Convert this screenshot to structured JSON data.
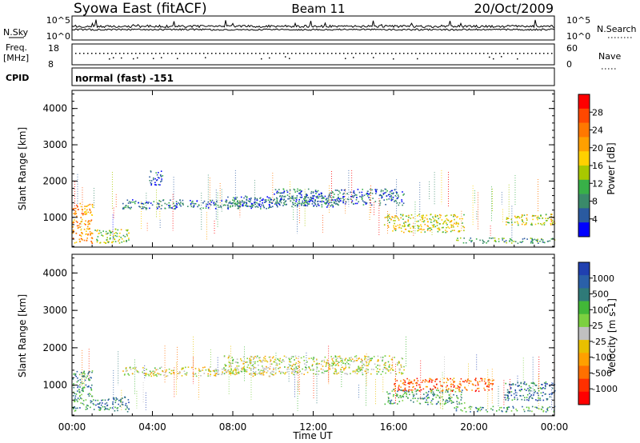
{
  "header": {
    "station": "Syowa East (fitACF)",
    "beam": "Beam 11",
    "date": "20/Oct/2009"
  },
  "top_panels": {
    "nsky_label": "N.Sky",
    "nsearch_label": "N.Search",
    "noise_ticks": [
      "10^5",
      "10^0"
    ],
    "freq_label": "Freq.",
    "freq_unit": "[MHz]",
    "freq_ticks": [
      "18",
      "8"
    ],
    "nave_label": "Nave",
    "nave_ticks": [
      "60",
      "0"
    ],
    "cpid_label": "CPID",
    "cpid_value": "normal (fast) -151"
  },
  "colorbars": {
    "power": {
      "label": "Power [dB]",
      "ticks": [
        "28",
        "24",
        "20",
        "16",
        "12",
        "8",
        "4"
      ],
      "colors": [
        "#ff0000",
        "#ff4800",
        "#ff7800",
        "#ffa000",
        "#ffd000",
        "#a8c800",
        "#38b048",
        "#3a8a6a",
        "#2a5aa0",
        "#0000ff"
      ]
    },
    "velocity": {
      "label": "Velocity [m s-1]",
      "ticks": [
        "1000",
        "500",
        "100",
        "25",
        "-25",
        "-100",
        "-500",
        "-1000"
      ],
      "colors": [
        "#2040b0",
        "#2a60a8",
        "#2f7a78",
        "#42b838",
        "#7cd040",
        "#c0c0c0",
        "#e8c000",
        "#ffa000",
        "#ff7000",
        "#ff3000",
        "#ff0000"
      ]
    }
  },
  "chart_data": [
    {
      "type": "heatmap",
      "name": "Power",
      "xlabel": "",
      "ylabel": "Slant Range [km]",
      "x_ticks": [
        "00:00",
        "04:00",
        "08:00",
        "12:00",
        "16:00",
        "20:00",
        "00:00"
      ],
      "y_ticks": [
        "1000",
        "2000",
        "3000",
        "4000"
      ],
      "xlim_hours": [
        0,
        24
      ],
      "ylim_km": [
        180,
        4500
      ],
      "zlim_db": [
        0,
        30
      ],
      "echo_regions": [
        {
          "t0": 0.0,
          "t1": 1.0,
          "r0": 300,
          "r1": 1400,
          "level": 0.7
        },
        {
          "t0": 1.0,
          "t1": 2.8,
          "r0": 300,
          "r1": 700,
          "level": 0.45
        },
        {
          "t0": 2.5,
          "t1": 10.0,
          "r0": 1250,
          "r1": 1500,
          "level": 0.2
        },
        {
          "t0": 3.8,
          "t1": 4.5,
          "r0": 1900,
          "r1": 2300,
          "level": 0.15
        },
        {
          "t0": 7.5,
          "t1": 13.5,
          "r0": 1300,
          "r1": 1600,
          "level": 0.2
        },
        {
          "t0": 10.0,
          "t1": 16.5,
          "r0": 1350,
          "r1": 1800,
          "level": 0.2
        },
        {
          "t0": 15.5,
          "t1": 19.5,
          "r0": 600,
          "r1": 1100,
          "level": 0.5
        },
        {
          "t0": 19.0,
          "t1": 24.0,
          "r0": 300,
          "r1": 450,
          "level": 0.3
        },
        {
          "t0": 21.5,
          "t1": 24.0,
          "r0": 800,
          "r1": 1100,
          "level": 0.5
        }
      ]
    },
    {
      "type": "heatmap",
      "name": "Velocity",
      "xlabel": "Time UT",
      "ylabel": "Slant Range [km]",
      "x_ticks": [
        "00:00",
        "04:00",
        "08:00",
        "12:00",
        "16:00",
        "20:00",
        "00:00"
      ],
      "y_ticks": [
        "1000",
        "2000",
        "3000",
        "4000"
      ],
      "xlim_hours": [
        0,
        24
      ],
      "ylim_km": [
        180,
        4500
      ],
      "zlim_ms": [
        -1000,
        1000
      ],
      "echo_regions": [
        {
          "t0": 0.0,
          "t1": 1.0,
          "r0": 300,
          "r1": 1400,
          "level": 0.75
        },
        {
          "t0": 1.0,
          "t1": 2.8,
          "r0": 300,
          "r1": 700,
          "level": 0.8
        },
        {
          "t0": 2.5,
          "t1": 10.0,
          "r0": 1250,
          "r1": 1500,
          "level": 0.48
        },
        {
          "t0": 7.5,
          "t1": 16.5,
          "r0": 1300,
          "r1": 1800,
          "level": 0.5
        },
        {
          "t0": 15.5,
          "t1": 19.5,
          "r0": 500,
          "r1": 900,
          "level": 0.7
        },
        {
          "t0": 16.0,
          "t1": 21.0,
          "r0": 850,
          "r1": 1200,
          "level": 0.2
        },
        {
          "t0": 19.0,
          "t1": 24.0,
          "r0": 300,
          "r1": 450,
          "level": 0.72
        },
        {
          "t0": 21.5,
          "t1": 24.0,
          "r0": 600,
          "r1": 1100,
          "level": 0.82
        }
      ]
    }
  ]
}
